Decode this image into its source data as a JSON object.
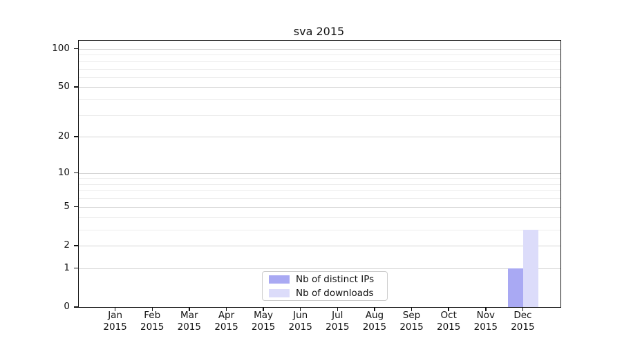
{
  "title": "sva 2015",
  "colors": {
    "distinct_ips": "#a9a9f3",
    "downloads": "#dcdcfa",
    "grid_major": "#d4d4d4",
    "grid_minor": "#ececec",
    "spine": "#111111"
  },
  "legend": {
    "items": [
      {
        "label": "Nb of distinct IPs",
        "color_key": "distinct_ips"
      },
      {
        "label": "Nb of downloads",
        "color_key": "downloads"
      }
    ]
  },
  "x_axis": {
    "months": [
      "Jan",
      "Feb",
      "Mar",
      "Apr",
      "May",
      "Jun",
      "Jul",
      "Aug",
      "Sep",
      "Oct",
      "Nov",
      "Dec"
    ],
    "year": "2015"
  },
  "y_axis": {
    "tick_values": [
      0,
      1,
      2,
      5,
      10,
      20,
      50,
      100
    ],
    "minor_tick_values": [
      3,
      4,
      6,
      7,
      8,
      9,
      30,
      40,
      60,
      70,
      80,
      90
    ]
  },
  "chart_data": {
    "type": "bar",
    "title": "sva 2015",
    "xlabel": "",
    "ylabel": "",
    "categories": [
      "Jan 2015",
      "Feb 2015",
      "Mar 2015",
      "Apr 2015",
      "May 2015",
      "Jun 2015",
      "Jul 2015",
      "Aug 2015",
      "Sep 2015",
      "Oct 2015",
      "Nov 2015",
      "Dec 2015"
    ],
    "series": [
      {
        "name": "Nb of distinct IPs",
        "color": "#a9a9f3",
        "values": [
          0,
          0,
          0,
          0,
          0,
          0,
          0,
          0,
          0,
          0,
          0,
          1
        ]
      },
      {
        "name": "Nb of downloads",
        "color": "#dcdcfa",
        "values": [
          0,
          0,
          0,
          0,
          0,
          0,
          0,
          0,
          0,
          0,
          0,
          3
        ]
      }
    ],
    "y_scale": "log1p",
    "y_ticks": [
      0,
      1,
      2,
      5,
      10,
      20,
      50,
      100
    ],
    "y_minor_ticks": [
      3,
      4,
      6,
      7,
      8,
      9,
      30,
      40,
      60,
      70,
      80,
      90
    ],
    "ylim": [
      0,
      116
    ],
    "grid": true,
    "legend_position": "lower center"
  }
}
